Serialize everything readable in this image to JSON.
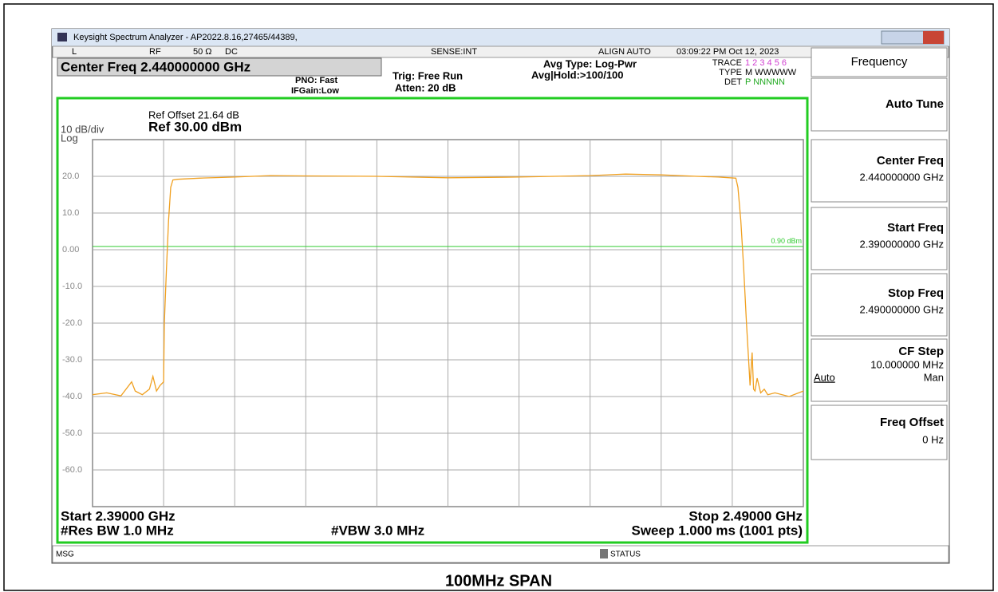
{
  "window": {
    "title": "Keysight Spectrum Analyzer - AP2022.8.16,27465/44389,"
  },
  "status_row": {
    "input": "L",
    "rf": "RF",
    "impedance": "50 Ω",
    "coupling": "DC",
    "sense": "SENSE:INT",
    "align": "ALIGN AUTO",
    "datetime": "03:09:22 PM Oct 12, 2023"
  },
  "settings": {
    "center": "Center Freq 2.440000000 GHz",
    "pno": "PNO: Fast",
    "ifgain": "IFGain:Low",
    "trig": "Trig: Free Run",
    "atten": "Atten: 20 dB",
    "avg_type": "Avg Type: Log-Pwr",
    "avg_hold": "Avg|Hold:>100/100",
    "trace_label": "TRACE",
    "trace_nums": "1 2 3 4 5 6",
    "type_label": "TYPE",
    "type_vals": "M WWWWW",
    "det_label": "DET",
    "det_vals": "P NNNNN"
  },
  "plot": {
    "ref_offset": "Ref Offset 21.64 dB",
    "ref": "Ref 30.00 dBm",
    "scale": "10 dB/div",
    "scale_type": "Log",
    "ylim": [
      -70,
      30
    ],
    "xlim": [
      2.39,
      2.49
    ],
    "yticks": [
      {
        "value": 20,
        "label": "20.0"
      },
      {
        "value": 10,
        "label": "10.0"
      },
      {
        "value": 0,
        "label": "0.00"
      },
      {
        "value": -10,
        "label": "-10.0"
      },
      {
        "value": -20,
        "label": "-20.0"
      },
      {
        "value": -30,
        "label": "-30.0"
      },
      {
        "value": -40,
        "label": "-40.0"
      },
      {
        "value": -50,
        "label": "-50.0"
      },
      {
        "value": -60,
        "label": "-60.0"
      }
    ],
    "display_line": {
      "value": 0.9,
      "label": "0.90 dBm"
    },
    "trace": {
      "color": "#f0a020",
      "x": [
        2.39,
        2.392,
        2.394,
        2.3955,
        2.396,
        2.397,
        2.398,
        2.3985,
        2.399,
        2.3995,
        2.4,
        2.4001,
        2.4004,
        2.4007,
        2.401,
        2.4013,
        2.402,
        2.405,
        2.41,
        2.415,
        2.42,
        2.43,
        2.44,
        2.45,
        2.46,
        2.465,
        2.47,
        2.475,
        2.478,
        2.4805,
        2.4808,
        2.4812,
        2.4816,
        2.482,
        2.4823,
        2.4825,
        2.4828,
        2.483,
        2.4832,
        2.4835,
        2.484,
        2.4845,
        2.485,
        2.486,
        2.488,
        2.49
      ],
      "y": [
        -39.5,
        -39,
        -39.8,
        -36,
        -38.5,
        -39.5,
        -38,
        -34.5,
        -38.5,
        -37,
        -36,
        -20,
        -5,
        8,
        17,
        19,
        19.2,
        19.5,
        19.8,
        20.2,
        20.1,
        20,
        19.6,
        19.8,
        20.2,
        20.6,
        20.4,
        20,
        19.8,
        19.5,
        17,
        8,
        -5,
        -20,
        -30,
        -37,
        -28,
        -38,
        -38.5,
        -35,
        -39,
        -38,
        -39.5,
        -39,
        -40,
        -38.5
      ]
    },
    "start": "Start 2.39000 GHz",
    "stop": "Stop 2.49000 GHz",
    "rbw": "#Res BW 1.0 MHz",
    "vbw": "#VBW 3.0 MHz",
    "sweep": "Sweep  1.000 ms (1001 pts)"
  },
  "softkeys": {
    "menu": "Frequency",
    "auto_tune": "Auto Tune",
    "center": {
      "label": "Center Freq",
      "value": "2.440000000 GHz"
    },
    "start": {
      "label": "Start Freq",
      "value": "2.390000000 GHz"
    },
    "stop": {
      "label": "Stop Freq",
      "value": "2.490000000 GHz"
    },
    "cf_step": {
      "label": "CF Step",
      "value": "10.000000 MHz",
      "auto": "Auto",
      "man": "Man"
    },
    "offset": {
      "label": "Freq Offset",
      "value": "0 Hz"
    }
  },
  "statusbar": {
    "msg": "MSG",
    "status": "STATUS"
  },
  "caption": "100MHz SPAN"
}
